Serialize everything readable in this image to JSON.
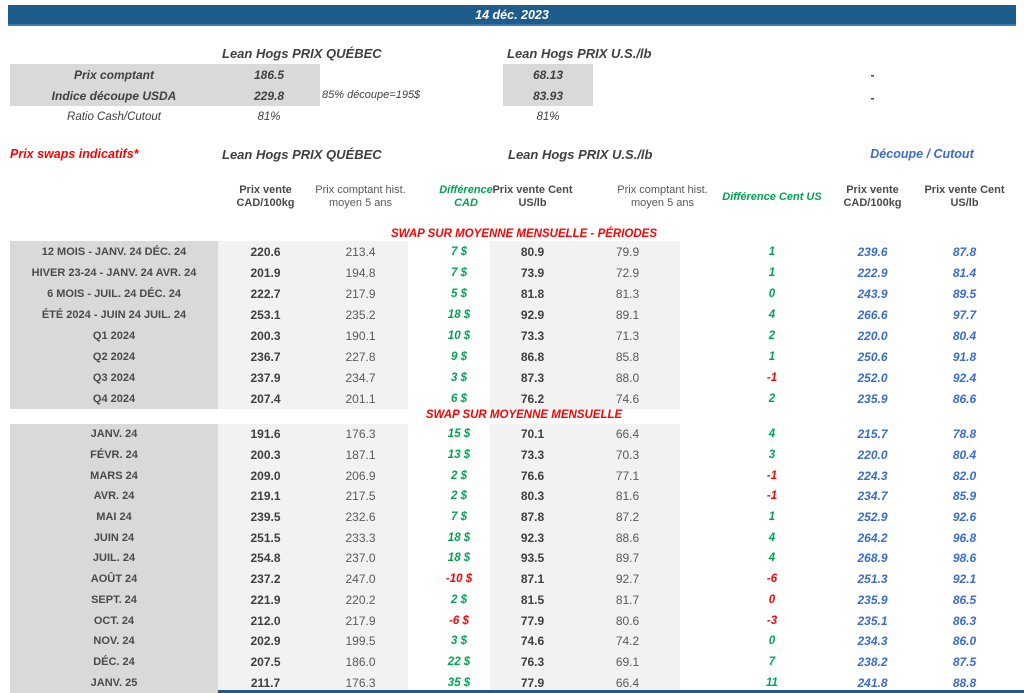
{
  "colors": {
    "bar_blue": "#1E5C8C",
    "red": "#FF0000",
    "green": "#00A550",
    "blue": "#3A6BCE",
    "grey_dark": "#D9D9D9",
    "grey_light": "#F2F2F2"
  },
  "title_bar": {
    "date": "14 déc. 2023"
  },
  "spot": {
    "qc_title": "Lean Hogs PRIX QUÉBEC",
    "us_title": "Lean Hogs PRIX U.S./lb",
    "rows": [
      {
        "label": "Prix comptant",
        "qc": "186.5",
        "us": "68.13",
        "right": "-"
      },
      {
        "label": "Indice découpe USDA",
        "qc": "229.8",
        "note": "85% découpe=195$",
        "us": "83.93",
        "right": "-"
      },
      {
        "label": "Ratio Cash/Cutout",
        "qc": "81%",
        "us": "81%"
      }
    ]
  },
  "swaps": {
    "title": "Prix swaps indicatifs*",
    "qc_group": "Lean Hogs PRIX QUÉBEC",
    "us_group": "Lean Hogs PRIX U.S./lb",
    "cutout_group": "Découpe / Cutout",
    "columns": [
      "Prix vente CAD/100kg",
      "Prix comptant hist. moyen 5 ans",
      "Différence CAD",
      "Prix vente Cent US/lb",
      "Prix comptant hist. moyen 5 ans",
      "Différence Cent US",
      "Prix vente CAD/100kg",
      "Prix vente Cent US/lb"
    ],
    "sections": [
      {
        "title": "SWAP SUR MOYENNE MENSUELLE - PÉRIODES",
        "rows": [
          {
            "label": "12 MOIS - JANV. 24 DÉC. 24",
            "qc_vente": "220.6",
            "qc_hist": "213.4",
            "diff_cad": "7 $",
            "diff_cad_color": "green",
            "us_vente": "80.9",
            "us_hist": "79.9",
            "diff_us": "1",
            "diff_us_color": "green",
            "cut_cad": "239.6",
            "cut_us": "87.8"
          },
          {
            "label": "HIVER 23-24 -  JANV. 24 AVR. 24",
            "qc_vente": "201.9",
            "qc_hist": "194.8",
            "diff_cad": "7 $",
            "diff_cad_color": "green",
            "us_vente": "73.9",
            "us_hist": "72.9",
            "diff_us": "1",
            "diff_us_color": "green",
            "cut_cad": "222.9",
            "cut_us": "81.4"
          },
          {
            "label": "6 MOIS -  JUIL. 24 DÉC. 24",
            "qc_vente": "222.7",
            "qc_hist": "217.9",
            "diff_cad": "5 $",
            "diff_cad_color": "green",
            "us_vente": "81.8",
            "us_hist": "81.3",
            "diff_us": "0",
            "diff_us_color": "green",
            "cut_cad": "243.9",
            "cut_us": "89.5"
          },
          {
            "label": "ÉTÉ 2024 - JUIN 24 JUIL. 24",
            "qc_vente": "253.1",
            "qc_hist": "235.2",
            "diff_cad": "18 $",
            "diff_cad_color": "green",
            "us_vente": "92.9",
            "us_hist": "89.1",
            "diff_us": "4",
            "diff_us_color": "green",
            "cut_cad": "266.6",
            "cut_us": "97.7"
          },
          {
            "label": "Q1 2024",
            "qc_vente": "200.3",
            "qc_hist": "190.1",
            "diff_cad": "10 $",
            "diff_cad_color": "green",
            "us_vente": "73.3",
            "us_hist": "71.3",
            "diff_us": "2",
            "diff_us_color": "green",
            "cut_cad": "220.0",
            "cut_us": "80.4"
          },
          {
            "label": "Q2 2024",
            "qc_vente": "236.7",
            "qc_hist": "227.8",
            "diff_cad": "9 $",
            "diff_cad_color": "green",
            "us_vente": "86.8",
            "us_hist": "85.8",
            "diff_us": "1",
            "diff_us_color": "green",
            "cut_cad": "250.6",
            "cut_us": "91.8"
          },
          {
            "label": "Q3 2024",
            "qc_vente": "237.9",
            "qc_hist": "234.7",
            "diff_cad": "3 $",
            "diff_cad_color": "green",
            "us_vente": "87.3",
            "us_hist": "88.0",
            "diff_us": "-1",
            "diff_us_color": "red",
            "cut_cad": "252.0",
            "cut_us": "92.4"
          },
          {
            "label": "Q4 2024",
            "qc_vente": "207.4",
            "qc_hist": "201.1",
            "diff_cad": "6 $",
            "diff_cad_color": "green",
            "us_vente": "76.2",
            "us_hist": "74.6",
            "diff_us": "2",
            "diff_us_color": "green",
            "cut_cad": "235.9",
            "cut_us": "86.6"
          }
        ]
      },
      {
        "title": "SWAP SUR MOYENNE MENSUELLE",
        "rows": [
          {
            "label": "JANV. 24",
            "qc_vente": "191.6",
            "qc_hist": "176.3",
            "diff_cad": "15 $",
            "diff_cad_color": "green",
            "us_vente": "70.1",
            "us_hist": "66.4",
            "diff_us": "4",
            "diff_us_color": "green",
            "cut_cad": "215.7",
            "cut_us": "78.8"
          },
          {
            "label": "FÉVR. 24",
            "qc_vente": "200.3",
            "qc_hist": "187.1",
            "diff_cad": "13 $",
            "diff_cad_color": "green",
            "us_vente": "73.3",
            "us_hist": "70.3",
            "diff_us": "3",
            "diff_us_color": "green",
            "cut_cad": "220.0",
            "cut_us": "80.4"
          },
          {
            "label": "MARS 24",
            "qc_vente": "209.0",
            "qc_hist": "206.9",
            "diff_cad": "2 $",
            "diff_cad_color": "green",
            "us_vente": "76.6",
            "us_hist": "77.1",
            "diff_us": "-1",
            "diff_us_color": "red",
            "cut_cad": "224.3",
            "cut_us": "82.0"
          },
          {
            "label": "AVR. 24",
            "qc_vente": "219.1",
            "qc_hist": "217.5",
            "diff_cad": "2 $",
            "diff_cad_color": "green",
            "us_vente": "80.3",
            "us_hist": "81.6",
            "diff_us": "-1",
            "diff_us_color": "red",
            "cut_cad": "234.7",
            "cut_us": "85.9"
          },
          {
            "label": "MAI 24",
            "qc_vente": "239.5",
            "qc_hist": "232.6",
            "diff_cad": "7 $",
            "diff_cad_color": "green",
            "us_vente": "87.8",
            "us_hist": "87.2",
            "diff_us": "1",
            "diff_us_color": "green",
            "cut_cad": "252.9",
            "cut_us": "92.6"
          },
          {
            "label": "JUIN 24",
            "qc_vente": "251.5",
            "qc_hist": "233.3",
            "diff_cad": "18 $",
            "diff_cad_color": "green",
            "us_vente": "92.3",
            "us_hist": "88.6",
            "diff_us": "4",
            "diff_us_color": "green",
            "cut_cad": "264.2",
            "cut_us": "96.8"
          },
          {
            "label": "JUIL. 24",
            "qc_vente": "254.8",
            "qc_hist": "237.0",
            "diff_cad": "18 $",
            "diff_cad_color": "green",
            "us_vente": "93.5",
            "us_hist": "89.7",
            "diff_us": "4",
            "diff_us_color": "green",
            "cut_cad": "268.9",
            "cut_us": "98.6"
          },
          {
            "label": "AOÛT 24",
            "qc_vente": "237.2",
            "qc_hist": "247.0",
            "diff_cad": "-10 $",
            "diff_cad_color": "red",
            "us_vente": "87.1",
            "us_hist": "92.7",
            "diff_us": "-6",
            "diff_us_color": "red",
            "cut_cad": "251.3",
            "cut_us": "92.1"
          },
          {
            "label": "SEPT. 24",
            "qc_vente": "221.9",
            "qc_hist": "220.2",
            "diff_cad": "2 $",
            "diff_cad_color": "green",
            "us_vente": "81.5",
            "us_hist": "81.7",
            "diff_us": "0",
            "diff_us_color": "red",
            "cut_cad": "235.9",
            "cut_us": "86.5"
          },
          {
            "label": "OCT. 24",
            "qc_vente": "212.0",
            "qc_hist": "217.9",
            "diff_cad": "-6 $",
            "diff_cad_color": "red",
            "us_vente": "77.9",
            "us_hist": "80.6",
            "diff_us": "-3",
            "diff_us_color": "red",
            "cut_cad": "235.1",
            "cut_us": "86.3"
          },
          {
            "label": "NOV. 24",
            "qc_vente": "202.9",
            "qc_hist": "199.5",
            "diff_cad": "3 $",
            "diff_cad_color": "green",
            "us_vente": "74.6",
            "us_hist": "74.2",
            "diff_us": "0",
            "diff_us_color": "green",
            "cut_cad": "234.3",
            "cut_us": "86.0"
          },
          {
            "label": "DÉC. 24",
            "qc_vente": "207.5",
            "qc_hist": "186.0",
            "diff_cad": "22 $",
            "diff_cad_color": "green",
            "us_vente": "76.3",
            "us_hist": "69.1",
            "diff_us": "7",
            "diff_us_color": "green",
            "cut_cad": "238.2",
            "cut_us": "87.5"
          },
          {
            "label": "JANV. 25",
            "qc_vente": "211.7",
            "qc_hist": "176.3",
            "diff_cad": "35 $",
            "diff_cad_color": "green",
            "us_vente": "77.9",
            "us_hist": "66.4",
            "diff_us": "11",
            "diff_us_color": "green",
            "cut_cad": "241.8",
            "cut_us": "88.8"
          }
        ]
      }
    ]
  }
}
